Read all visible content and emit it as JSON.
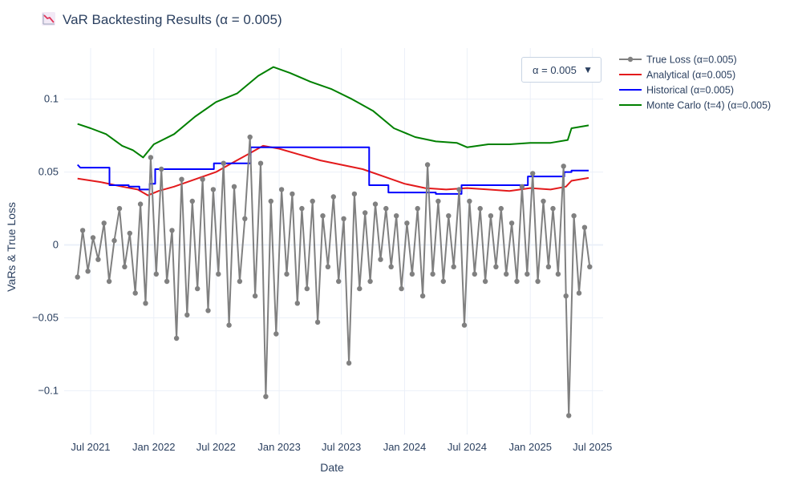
{
  "chart_data": {
    "type": "line",
    "title": "VaR Backtesting Results (α = 0.005)",
    "title_icon": "chart-decreasing-icon",
    "xlabel": "Date",
    "ylabel": "VaRs & True Loss",
    "x_range": [
      "2021-04-15",
      "2025-08-01"
    ],
    "ylim": [
      -0.13,
      0.135
    ],
    "y_ticks": [
      -0.1,
      -0.05,
      0,
      0.05,
      0.1
    ],
    "y_tick_labels": [
      "−0.1",
      "−0.05",
      "0",
      "0.05",
      "0.1"
    ],
    "x_ticks": [
      "2021-07-01",
      "2022-01-01",
      "2022-07-01",
      "2023-01-01",
      "2023-07-01",
      "2024-01-01",
      "2024-07-01",
      "2025-01-01",
      "2025-07-01"
    ],
    "x_tick_labels": [
      "Jul 2021",
      "Jan 2022",
      "Jul 2022",
      "Jan 2023",
      "Jul 2023",
      "Jan 2024",
      "Jul 2024",
      "Jan 2025",
      "Jul 2025"
    ],
    "grid": true,
    "legend_position": "right",
    "series": [
      {
        "name": "True Loss (α=0.005)",
        "mode": "lines+markers",
        "color": "#808080",
        "points": [
          [
            "2021-05-24",
            -0.022
          ],
          [
            "2021-06-08",
            0.01
          ],
          [
            "2021-06-23",
            -0.018
          ],
          [
            "2021-07-08",
            0.005
          ],
          [
            "2021-07-23",
            -0.01
          ],
          [
            "2021-08-09",
            0.015
          ],
          [
            "2021-08-24",
            -0.025
          ],
          [
            "2021-09-08",
            0.003
          ],
          [
            "2021-09-23",
            0.025
          ],
          [
            "2021-10-08",
            -0.015
          ],
          [
            "2021-10-23",
            0.008
          ],
          [
            "2021-11-08",
            -0.033
          ],
          [
            "2021-11-23",
            0.028
          ],
          [
            "2021-12-08",
            -0.04
          ],
          [
            "2021-12-23",
            0.06
          ],
          [
            "2022-01-08",
            -0.02
          ],
          [
            "2022-01-23",
            0.052
          ],
          [
            "2022-02-08",
            -0.025
          ],
          [
            "2022-02-23",
            0.01
          ],
          [
            "2022-03-08",
            -0.064
          ],
          [
            "2022-03-23",
            0.045
          ],
          [
            "2022-04-08",
            -0.048
          ],
          [
            "2022-04-23",
            0.03
          ],
          [
            "2022-05-08",
            -0.03
          ],
          [
            "2022-05-23",
            0.045
          ],
          [
            "2022-06-08",
            -0.045
          ],
          [
            "2022-06-23",
            0.038
          ],
          [
            "2022-07-08",
            -0.02
          ],
          [
            "2022-07-23",
            0.056
          ],
          [
            "2022-08-08",
            -0.055
          ],
          [
            "2022-08-23",
            0.04
          ],
          [
            "2022-09-08",
            -0.025
          ],
          [
            "2022-09-23",
            0.018
          ],
          [
            "2022-10-08",
            0.074
          ],
          [
            "2022-10-23",
            -0.035
          ],
          [
            "2022-11-08",
            0.056
          ],
          [
            "2022-11-23",
            -0.104
          ],
          [
            "2022-12-08",
            0.03
          ],
          [
            "2022-12-23",
            -0.061
          ],
          [
            "2023-01-08",
            0.038
          ],
          [
            "2023-01-23",
            -0.02
          ],
          [
            "2023-02-08",
            0.035
          ],
          [
            "2023-02-23",
            -0.04
          ],
          [
            "2023-03-08",
            0.025
          ],
          [
            "2023-03-23",
            -0.03
          ],
          [
            "2023-04-08",
            0.03
          ],
          [
            "2023-04-23",
            -0.053
          ],
          [
            "2023-05-08",
            0.02
          ],
          [
            "2023-05-23",
            -0.015
          ],
          [
            "2023-06-08",
            0.033
          ],
          [
            "2023-06-23",
            -0.025
          ],
          [
            "2023-07-08",
            0.018
          ],
          [
            "2023-07-23",
            -0.081
          ],
          [
            "2023-08-08",
            0.035
          ],
          [
            "2023-08-23",
            -0.03
          ],
          [
            "2023-09-08",
            0.022
          ],
          [
            "2023-09-23",
            -0.025
          ],
          [
            "2023-10-08",
            0.028
          ],
          [
            "2023-10-23",
            -0.01
          ],
          [
            "2023-11-08",
            0.025
          ],
          [
            "2023-11-23",
            -0.015
          ],
          [
            "2023-12-08",
            0.02
          ],
          [
            "2023-12-23",
            -0.03
          ],
          [
            "2024-01-08",
            0.015
          ],
          [
            "2024-01-23",
            -0.02
          ],
          [
            "2024-02-08",
            0.025
          ],
          [
            "2024-02-23",
            -0.035
          ],
          [
            "2024-03-08",
            0.055
          ],
          [
            "2024-03-23",
            -0.02
          ],
          [
            "2024-04-08",
            0.03
          ],
          [
            "2024-04-23",
            -0.025
          ],
          [
            "2024-05-08",
            0.02
          ],
          [
            "2024-05-23",
            -0.015
          ],
          [
            "2024-06-08",
            0.038
          ],
          [
            "2024-06-23",
            -0.055
          ],
          [
            "2024-07-08",
            0.03
          ],
          [
            "2024-07-23",
            -0.02
          ],
          [
            "2024-08-08",
            0.025
          ],
          [
            "2024-08-23",
            -0.025
          ],
          [
            "2024-09-08",
            0.02
          ],
          [
            "2024-09-23",
            -0.015
          ],
          [
            "2024-10-08",
            0.025
          ],
          [
            "2024-10-23",
            -0.02
          ],
          [
            "2024-11-08",
            0.015
          ],
          [
            "2024-11-23",
            -0.025
          ],
          [
            "2024-12-08",
            0.04
          ],
          [
            "2024-12-23",
            -0.02
          ],
          [
            "2025-01-08",
            0.049
          ],
          [
            "2025-01-23",
            -0.025
          ],
          [
            "2025-02-08",
            0.03
          ],
          [
            "2025-02-23",
            -0.015
          ],
          [
            "2025-03-08",
            0.025
          ],
          [
            "2025-03-23",
            -0.02
          ],
          [
            "2025-04-08",
            0.054
          ],
          [
            "2025-04-15",
            -0.035
          ],
          [
            "2025-04-23",
            -0.117
          ],
          [
            "2025-05-08",
            0.02
          ],
          [
            "2025-05-23",
            -0.033
          ],
          [
            "2025-06-08",
            0.012
          ],
          [
            "2025-06-23",
            -0.015
          ]
        ]
      },
      {
        "name": "Analytical (α=0.005)",
        "mode": "lines",
        "color": "#e31a1c",
        "points": [
          [
            "2021-05-24",
            0.0455
          ],
          [
            "2021-08-01",
            0.043
          ],
          [
            "2021-10-01",
            0.04
          ],
          [
            "2021-11-15",
            0.038
          ],
          [
            "2021-12-15",
            0.034
          ],
          [
            "2022-01-15",
            0.037
          ],
          [
            "2022-03-01",
            0.04
          ],
          [
            "2022-05-01",
            0.045
          ],
          [
            "2022-07-01",
            0.05
          ],
          [
            "2022-08-15",
            0.056
          ],
          [
            "2022-10-01",
            0.062
          ],
          [
            "2022-11-15",
            0.068
          ],
          [
            "2023-01-01",
            0.066
          ],
          [
            "2023-03-01",
            0.062
          ],
          [
            "2023-05-01",
            0.058
          ],
          [
            "2023-07-01",
            0.055
          ],
          [
            "2023-09-01",
            0.052
          ],
          [
            "2023-11-01",
            0.047
          ],
          [
            "2024-01-01",
            0.042
          ],
          [
            "2024-03-01",
            0.039
          ],
          [
            "2024-05-01",
            0.038
          ],
          [
            "2024-07-01",
            0.039
          ],
          [
            "2024-09-01",
            0.038
          ],
          [
            "2024-11-01",
            0.037
          ],
          [
            "2025-01-01",
            0.039
          ],
          [
            "2025-03-01",
            0.038
          ],
          [
            "2025-04-15",
            0.04
          ],
          [
            "2025-05-01",
            0.044
          ],
          [
            "2025-06-20",
            0.046
          ]
        ]
      },
      {
        "name": "Historical (α=0.005)",
        "mode": "lines",
        "color": "#0000ff",
        "points": [
          [
            "2021-05-24",
            0.055
          ],
          [
            "2021-06-01",
            0.053
          ],
          [
            "2021-08-25",
            0.053
          ],
          [
            "2021-08-25",
            0.041
          ],
          [
            "2021-10-20",
            0.041
          ],
          [
            "2021-10-20",
            0.04
          ],
          [
            "2021-11-20",
            0.04
          ],
          [
            "2021-11-20",
            0.038
          ],
          [
            "2021-12-20",
            0.038
          ],
          [
            "2021-12-20",
            0.042
          ],
          [
            "2022-01-05",
            0.042
          ],
          [
            "2022-01-05",
            0.052
          ],
          [
            "2022-06-25",
            0.052
          ],
          [
            "2022-06-25",
            0.056
          ],
          [
            "2022-10-10",
            0.056
          ],
          [
            "2022-10-10",
            0.067
          ],
          [
            "2023-09-20",
            0.067
          ],
          [
            "2023-09-20",
            0.041
          ],
          [
            "2023-11-15",
            0.041
          ],
          [
            "2023-11-15",
            0.036
          ],
          [
            "2024-04-01",
            0.036
          ],
          [
            "2024-04-01",
            0.035
          ],
          [
            "2024-06-15",
            0.035
          ],
          [
            "2024-06-15",
            0.041
          ],
          [
            "2024-12-25",
            0.041
          ],
          [
            "2024-12-25",
            0.047
          ],
          [
            "2025-04-10",
            0.047
          ],
          [
            "2025-04-10",
            0.05
          ],
          [
            "2025-05-01",
            0.05
          ],
          [
            "2025-05-01",
            0.051
          ],
          [
            "2025-06-20",
            0.051
          ]
        ]
      },
      {
        "name": "Monte Carlo (t=4) (α=0.005)",
        "mode": "lines",
        "color": "#008000",
        "points": [
          [
            "2021-05-24",
            0.083
          ],
          [
            "2021-07-01",
            0.08
          ],
          [
            "2021-08-15",
            0.076
          ],
          [
            "2021-10-01",
            0.068
          ],
          [
            "2021-11-01",
            0.065
          ],
          [
            "2021-12-01",
            0.06
          ],
          [
            "2022-01-01",
            0.069
          ],
          [
            "2022-03-01",
            0.076
          ],
          [
            "2022-05-01",
            0.088
          ],
          [
            "2022-07-01",
            0.098
          ],
          [
            "2022-09-01",
            0.104
          ],
          [
            "2022-11-01",
            0.116
          ],
          [
            "2022-12-15",
            0.122
          ],
          [
            "2023-02-01",
            0.118
          ],
          [
            "2023-04-01",
            0.112
          ],
          [
            "2023-06-01",
            0.107
          ],
          [
            "2023-08-01",
            0.1
          ],
          [
            "2023-10-01",
            0.092
          ],
          [
            "2023-12-01",
            0.08
          ],
          [
            "2024-02-01",
            0.074
          ],
          [
            "2024-04-01",
            0.071
          ],
          [
            "2024-06-01",
            0.07
          ],
          [
            "2024-07-01",
            0.067
          ],
          [
            "2024-09-01",
            0.069
          ],
          [
            "2024-11-01",
            0.069
          ],
          [
            "2025-01-01",
            0.07
          ],
          [
            "2025-03-01",
            0.07
          ],
          [
            "2025-04-20",
            0.072
          ],
          [
            "2025-05-01",
            0.08
          ],
          [
            "2025-06-20",
            0.082
          ]
        ]
      }
    ]
  },
  "dropdown": {
    "selected": "α = 0.005",
    "arrow_icon": "triangle-down-icon"
  },
  "colors": {
    "grid": "#ebf0f8",
    "zeroline": "#ebf0f8",
    "text": "#2a3f5f",
    "background": "#ffffff"
  }
}
